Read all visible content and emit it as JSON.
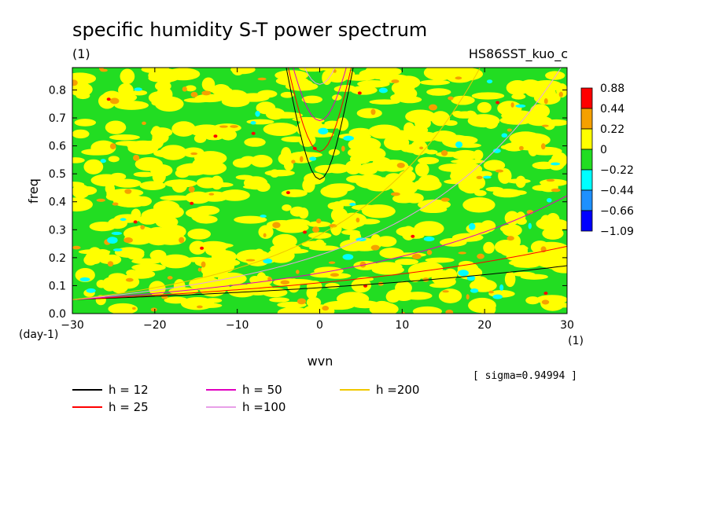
{
  "chart_data": {
    "type": "heatmap",
    "title": "specific humidity S-T power spectrum",
    "subtitle_left": "(1)",
    "subtitle_right": "HS86SST_kuo_c",
    "xlabel": "wvn",
    "ylabel": "freq",
    "x_unit": "(1)",
    "y_unit": "(day-1)",
    "xlim": [
      -30,
      30
    ],
    "ylim": [
      0,
      0.88
    ],
    "x_ticks": [
      -30,
      -20,
      -10,
      0,
      10,
      20,
      30
    ],
    "x_tick_labels": [
      "−30",
      "−20",
      "−10",
      "0",
      "10",
      "20",
      "30"
    ],
    "y_ticks": [
      0.0,
      0.1,
      0.2,
      0.3,
      0.4,
      0.5,
      0.6,
      0.7,
      0.8
    ],
    "y_tick_labels": [
      "0.0",
      "0.1",
      "0.2",
      "0.3",
      "0.4",
      "0.5",
      "0.6",
      "0.7",
      "0.8"
    ],
    "colorbar": {
      "labels": [
        "0.88",
        "0.44",
        "0.22",
        "0",
        "−0.22",
        "−0.44",
        "−0.66",
        "−1.09"
      ],
      "colors": [
        "#ff0000",
        "#f5a000",
        "#ffff00",
        "#22dd22",
        "#00ffff",
        "#1e90ff",
        "#0000ff"
      ]
    },
    "dispersion_curves": [
      {
        "label": "h = 12",
        "color": "#000000"
      },
      {
        "label": "h = 25",
        "color": "#ff0000"
      },
      {
        "label": "h = 50",
        "color": "#e000c0"
      },
      {
        "label": "h =100",
        "color": "#e8a0e8"
      },
      {
        "label": "h =200",
        "color": "#f0c800"
      }
    ],
    "note": "[ sigma=0.94994 ]"
  }
}
